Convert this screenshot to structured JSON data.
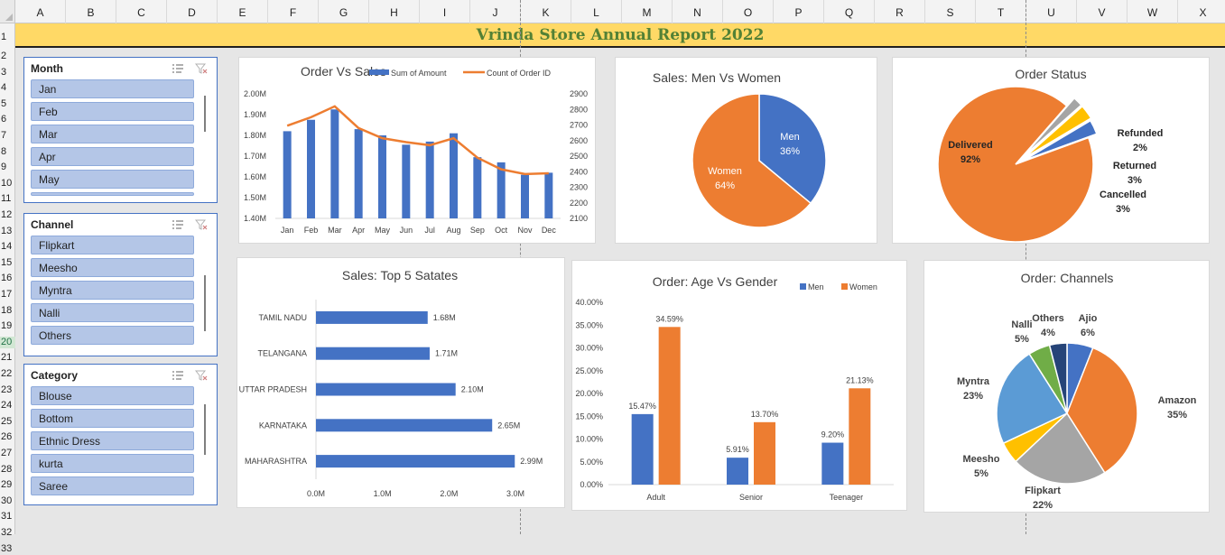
{
  "sheet": {
    "columns": [
      "A",
      "B",
      "C",
      "D",
      "E",
      "F",
      "G",
      "H",
      "I",
      "J",
      "K",
      "L",
      "M",
      "N",
      "O",
      "P",
      "Q",
      "R",
      "S",
      "T",
      "U",
      "V",
      "W",
      "X"
    ],
    "rows": [
      "1",
      "2",
      "3",
      "4",
      "5",
      "6",
      "7",
      "8",
      "9",
      "10",
      "11",
      "12",
      "13",
      "14",
      "15",
      "16",
      "17",
      "18",
      "19",
      "20",
      "21",
      "22",
      "23",
      "24",
      "25",
      "26",
      "27",
      "28",
      "29",
      "30",
      "31",
      "32",
      "33"
    ],
    "selected_row": "20",
    "title": "Vrinda Store Annual Report 2022"
  },
  "slicers": [
    {
      "title": "Month",
      "items": [
        "Jan",
        "Feb",
        "Mar",
        "Apr",
        "May"
      ]
    },
    {
      "title": "Channel",
      "items": [
        "Flipkart",
        "Meesho",
        "Myntra",
        "Nalli",
        "Others"
      ]
    },
    {
      "title": "Category",
      "items": [
        "Blouse",
        "Bottom",
        "Ethnic Dress",
        "kurta",
        "Saree"
      ]
    }
  ],
  "colors": {
    "blue": "#4472c4",
    "orange": "#ed7d31",
    "gray": "#a5a5a5",
    "yellow": "#ffc000",
    "lightblue": "#5b9bd5",
    "green": "#70ad47",
    "navy": "#264478",
    "title_green": "#538135",
    "title_bg": "#ffd966"
  },
  "icons": {
    "multi_select": "multi-select-icon",
    "clear_filter": "clear-filter-icon"
  },
  "chart_data": [
    {
      "id": "order_vs_sales",
      "type": "bar",
      "title": "Order Vs Sales",
      "categories": [
        "Jan",
        "Feb",
        "Mar",
        "Apr",
        "May",
        "Jun",
        "Jul",
        "Aug",
        "Sep",
        "Oct",
        "Nov",
        "Dec"
      ],
      "series": [
        {
          "name": "Sum of Amount",
          "type": "bar",
          "axis": "left",
          "values": [
            1820000,
            1875000,
            1925000,
            1830000,
            1800000,
            1755000,
            1770000,
            1810000,
            1695000,
            1670000,
            1610000,
            1620000
          ]
        },
        {
          "name": "Count of Order ID",
          "type": "line",
          "axis": "right",
          "values": [
            2695,
            2750,
            2820,
            2680,
            2615,
            2590,
            2570,
            2615,
            2490,
            2415,
            2385,
            2390
          ]
        }
      ],
      "ylim": [
        1400000,
        2000000
      ],
      "yticks": [
        "1.40M",
        "1.50M",
        "1.60M",
        "1.70M",
        "1.80M",
        "1.90M",
        "2.00M"
      ],
      "y2lim": [
        2100,
        2900
      ],
      "y2ticks": [
        "2100",
        "2200",
        "2300",
        "2400",
        "2500",
        "2600",
        "2700",
        "2800",
        "2900"
      ],
      "legend": "top"
    },
    {
      "id": "men_vs_women",
      "type": "pie",
      "title": "Sales: Men Vs Women",
      "slices": [
        {
          "name": "Men",
          "value": 36,
          "label": "36%"
        },
        {
          "name": "Women",
          "value": 64,
          "label": "64%"
        }
      ]
    },
    {
      "id": "order_status",
      "type": "pie",
      "title": "Order Status",
      "slices": [
        {
          "name": "Delivered",
          "value": 92,
          "label": "92%"
        },
        {
          "name": "Refunded",
          "value": 2,
          "label": "2%"
        },
        {
          "name": "Returned",
          "value": 3,
          "label": "3%"
        },
        {
          "name": "Cancelled",
          "value": 3,
          "label": "3%"
        }
      ]
    },
    {
      "id": "top5_states",
      "type": "bar",
      "orientation": "horizontal",
      "title": "Sales: Top 5 Satates",
      "categories": [
        "TAMIL NADU",
        "TELANGANA",
        "UTTAR PRADESH",
        "KARNATAKA",
        "MAHARASHTRA"
      ],
      "values": [
        1.68,
        1.71,
        2.1,
        2.65,
        2.99
      ],
      "value_labels": [
        "1.68M",
        "1.71M",
        "2.10M",
        "2.65M",
        "2.99M"
      ],
      "xlim": [
        0,
        3.0
      ],
      "xticks": [
        "0.0M",
        "1.0M",
        "2.0M",
        "3.0M"
      ]
    },
    {
      "id": "age_vs_gender",
      "type": "bar",
      "title": "Order: Age Vs Gender",
      "categories": [
        "Adult",
        "Senior",
        "Teenager"
      ],
      "series": [
        {
          "name": "Men",
          "values": [
            15.47,
            5.91,
            9.2
          ],
          "labels": [
            "15.47%",
            "5.91%",
            "9.20%"
          ]
        },
        {
          "name": "Women",
          "values": [
            34.59,
            13.7,
            21.13
          ],
          "labels": [
            "34.59%",
            "13.70%",
            "21.13%"
          ]
        }
      ],
      "ylim": [
        0,
        40
      ],
      "yticks": [
        "0.00%",
        "5.00%",
        "10.00%",
        "15.00%",
        "20.00%",
        "25.00%",
        "30.00%",
        "35.00%",
        "40.00%"
      ],
      "legend": "top-right"
    },
    {
      "id": "channels",
      "type": "pie",
      "title": "Order: Channels",
      "slices": [
        {
          "name": "Ajio",
          "value": 6,
          "label": "6%"
        },
        {
          "name": "Amazon",
          "value": 35,
          "label": "35%"
        },
        {
          "name": "Flipkart",
          "value": 22,
          "label": "22%"
        },
        {
          "name": "Meesho",
          "value": 5,
          "label": "5%"
        },
        {
          "name": "Myntra",
          "value": 23,
          "label": "23%"
        },
        {
          "name": "Nalli",
          "value": 5,
          "label": "5%"
        },
        {
          "name": "Others",
          "value": 4,
          "label": "4%"
        }
      ]
    }
  ]
}
